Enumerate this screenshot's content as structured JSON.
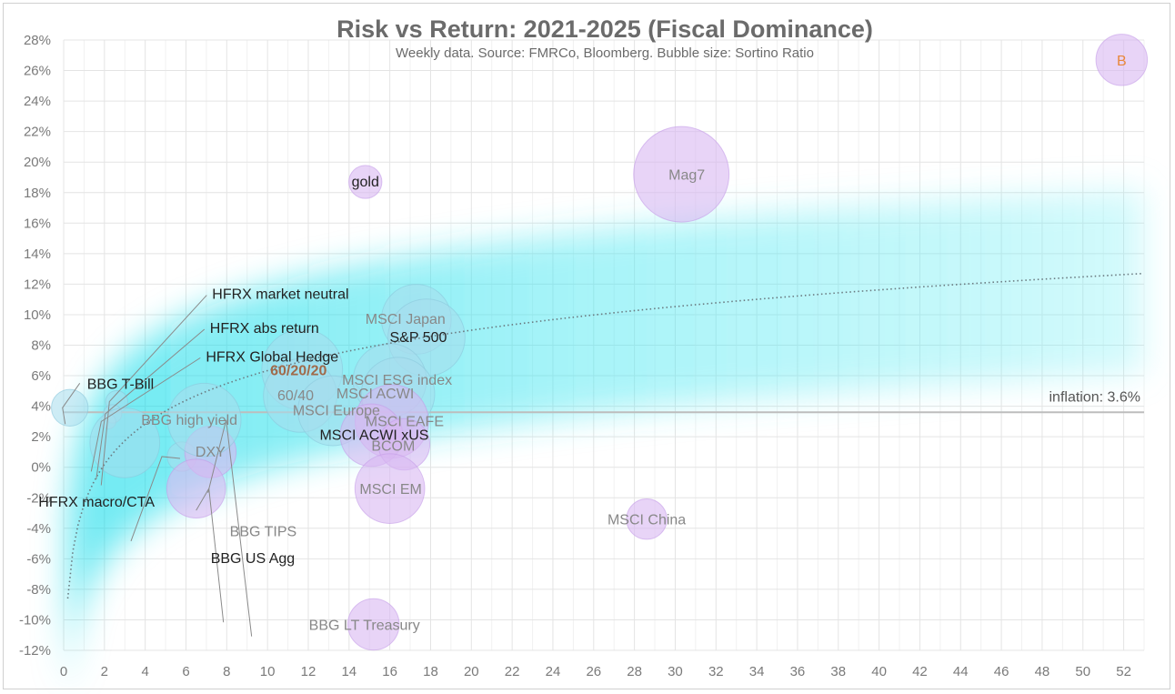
{
  "chart_data": {
    "type": "scatter",
    "subtype": "bubble",
    "title": "Risk vs Return: 2021-2025 (Fiscal Dominance)",
    "subtitle": "Weekly data.  Source: FMRCo, Bloomberg.  Bubble size: Sortino Ratio",
    "xlabel": "",
    "ylabel": "",
    "xlim": [
      0,
      53
    ],
    "ylim": [
      -12,
      28
    ],
    "x_ticks": [
      0,
      2,
      4,
      6,
      8,
      10,
      12,
      14,
      16,
      18,
      20,
      22,
      24,
      26,
      28,
      30,
      32,
      34,
      36,
      38,
      40,
      42,
      44,
      46,
      48,
      50,
      52
    ],
    "y_ticks": [
      -12,
      -10,
      -8,
      -6,
      -4,
      -2,
      0,
      2,
      4,
      6,
      8,
      10,
      12,
      14,
      16,
      18,
      20,
      22,
      24,
      26,
      28
    ],
    "y_tick_labels": [
      "-12%",
      "-10%",
      "-8%",
      "-6%",
      "-4%",
      "-2%",
      "0%",
      "2%",
      "4%",
      "6%",
      "8%",
      "10%",
      "12%",
      "14%",
      "16%",
      "18%",
      "20%",
      "22%",
      "24%",
      "26%",
      "28%"
    ],
    "grid": true,
    "colors": {
      "blue_bubble": "#a8dcec",
      "purple_bubble": "#d9b8f2",
      "purple_bubble_stroke": "#c59ce8",
      "blue_bubble_stroke": "#8cc8dc",
      "glow": "#6ff0f5",
      "grid": "#e4e4e4",
      "text_gray": "#888888",
      "text_dark": "#222222",
      "text_orange": "#e8873a",
      "text_brown": "#a06a4a"
    },
    "points": [
      {
        "label": "HFRX market neutral",
        "x": 2.6,
        "y": 4.3,
        "size": 0.6,
        "color": "blue",
        "label_color": "dark"
      },
      {
        "label": "HFRX abs return",
        "x": 2.4,
        "y": 3.5,
        "size": 0.5,
        "color": "blue",
        "label_color": "dark"
      },
      {
        "label": "HFRX Global Hedge",
        "x": 2.2,
        "y": 3.0,
        "size": 0.4,
        "color": "blue",
        "label_color": "dark"
      },
      {
        "label": "BBG T-Bill",
        "x": 0.3,
        "y": 3.9,
        "size": 1.0,
        "color": "blue",
        "label_color": "dark"
      },
      {
        "label": "BBG high yield",
        "x": 3.0,
        "y": 1.6,
        "size": 1.9,
        "color": "blue",
        "label_color": "gray"
      },
      {
        "label": "HFRX macro/CTA",
        "x": 5.8,
        "y": 0.7,
        "size": 0.8,
        "color": "blue",
        "label_color": "dark"
      },
      {
        "label": "DXY",
        "x": 7.2,
        "y": 1.0,
        "size": 1.4,
        "color": "purple",
        "label_color": "gray"
      },
      {
        "label": "BBG TIPS",
        "x": 6.9,
        "y": 3.1,
        "size": 2.0,
        "color": "blue",
        "label_color": "gray"
      },
      {
        "label": "BBG US Agg",
        "x": 6.5,
        "y": -1.4,
        "size": 1.6,
        "color": "purple",
        "label_color": "dark"
      },
      {
        "label": "60/20/20",
        "x": 11.7,
        "y": 6.4,
        "size": 2.2,
        "color": "blue",
        "label_color": "brown"
      },
      {
        "label": "60/40",
        "x": 11.6,
        "y": 4.7,
        "size": 2.0,
        "color": "blue",
        "label_color": "gray"
      },
      {
        "label": "MSCI Europe",
        "x": 13.2,
        "y": 3.7,
        "size": 1.9,
        "color": "blue",
        "label_color": "gray"
      },
      {
        "label": "MSCI Japan",
        "x": 17.3,
        "y": 9.7,
        "size": 1.9,
        "color": "blue",
        "label_color": "gray"
      },
      {
        "label": "S&P 500",
        "x": 17.8,
        "y": 8.5,
        "size": 2.1,
        "color": "blue",
        "label_color": "dark"
      },
      {
        "label": "MSCI ESG index",
        "x": 16.0,
        "y": 5.7,
        "size": 2.0,
        "color": "blue",
        "label_color": "gray"
      },
      {
        "label": "MSCI ACWI",
        "x": 16.4,
        "y": 4.8,
        "size": 2.0,
        "color": "blue",
        "label_color": "gray"
      },
      {
        "label": "MSCI EAFE",
        "x": 16.1,
        "y": 3.0,
        "size": 2.0,
        "color": "purple",
        "label_color": "gray"
      },
      {
        "label": "MSCI ACWI xUS",
        "x": 15.1,
        "y": 2.1,
        "size": 1.7,
        "color": "purple",
        "label_color": "dark"
      },
      {
        "label": "BCOM",
        "x": 16.7,
        "y": 1.5,
        "size": 1.4,
        "color": "purple",
        "label_color": "gray"
      },
      {
        "label": "MSCI EM",
        "x": 16.0,
        "y": -1.4,
        "size": 1.9,
        "color": "purple",
        "label_color": "gray"
      },
      {
        "label": "gold",
        "x": 14.8,
        "y": 18.7,
        "size": 0.9,
        "color": "purple",
        "label_color": "dark"
      },
      {
        "label": "Mag7",
        "x": 30.3,
        "y": 19.2,
        "size": 2.6,
        "color": "purple",
        "label_color": "gray"
      },
      {
        "label": "MSCI China",
        "x": 28.6,
        "y": -3.4,
        "size": 1.1,
        "color": "purple",
        "label_color": "gray"
      },
      {
        "label": "BBG LT Treasury",
        "x": 15.2,
        "y": -10.3,
        "size": 1.4,
        "color": "purple",
        "label_color": "gray"
      },
      {
        "label": "B",
        "x": 51.9,
        "y": 26.7,
        "size": 1.4,
        "color": "purple",
        "label_color": "orange"
      }
    ],
    "reference_line": {
      "label": "inflation: 3.6%",
      "y": 3.6
    },
    "trendline": {
      "type": "logarithmic",
      "style": "dotted",
      "x_start": 0.2,
      "y_start": -8.6,
      "x_end": 53,
      "y_end": 12.7
    }
  }
}
